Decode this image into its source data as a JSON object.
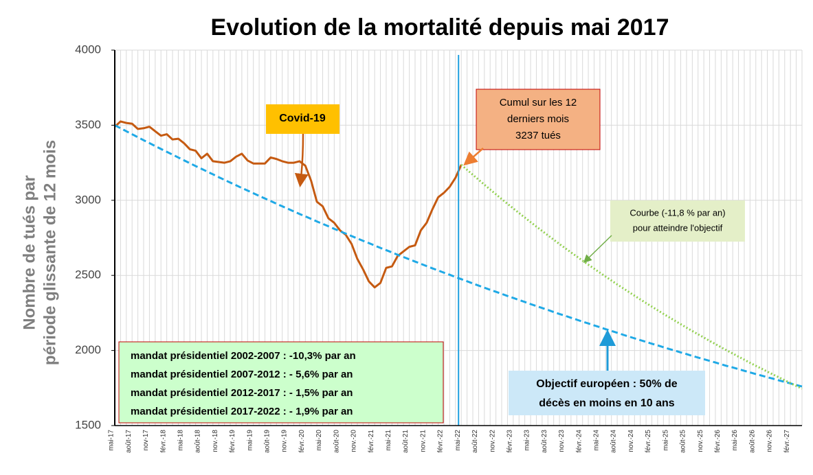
{
  "chart_data": {
    "type": "line",
    "title": "Evolution de la mortalité depuis mai 2017",
    "y_label": [
      "Nombre de tués par",
      "période  glissante de 12 mois"
    ],
    "categories": [
      "mai-17",
      null,
      null,
      "août-17",
      null,
      null,
      "nov-17",
      null,
      null,
      "févr.-18",
      null,
      null,
      "mai-18",
      null,
      null,
      "août-18",
      null,
      null,
      "nov.-18",
      null,
      null,
      "févr.-19",
      null,
      null,
      "mai-19",
      null,
      null,
      "août-19",
      null,
      null,
      "nov.-19",
      null,
      null,
      "févr.-20",
      null,
      null,
      "mai-20",
      null,
      null,
      "août-20",
      null,
      null,
      "nov.-20",
      null,
      null,
      "févr.-21",
      null,
      null,
      "mai-21",
      null,
      null,
      "août-21",
      null,
      null,
      "nov.-21",
      null,
      null,
      "févr.-22",
      null,
      null,
      "mai-22",
      null,
      null,
      "août-22",
      null,
      null,
      "nov.-22",
      null,
      null,
      "févr.-23",
      null,
      null,
      "mai-23",
      null,
      null,
      "août-23",
      null,
      null,
      "nov.-23",
      null,
      null,
      "févr.-24",
      null,
      null,
      "mai-24",
      null,
      null,
      "août-24",
      null,
      null,
      "nov.-24",
      null,
      null,
      "févr.-25",
      null,
      null,
      "mai-25",
      null,
      null,
      "août-25",
      null,
      null,
      "nov.-25",
      null,
      null,
      "févr.-26",
      null,
      null,
      "mai-26",
      null,
      null,
      "août-26",
      null,
      null,
      "nov.-26",
      null,
      null,
      "févr.-27",
      null,
      null
    ],
    "series": [
      {
        "name": "Mortalité",
        "color": "#c55a11",
        "style": "solid",
        "values": [
          3490,
          3525,
          3515,
          3510,
          3475,
          3480,
          3490,
          3460,
          3430,
          3440,
          3405,
          3410,
          3380,
          3340,
          3330,
          3280,
          3310,
          3260,
          3255,
          3250,
          3260,
          3290,
          3310,
          3265,
          3245,
          3245,
          3245,
          3285,
          3275,
          3260,
          3250,
          3250,
          3260,
          3230,
          3130,
          2990,
          2960,
          2880,
          2850,
          2800,
          2770,
          2710,
          2610,
          2540,
          2460,
          2420,
          2450,
          2550,
          2560,
          2630,
          2660,
          2690,
          2700,
          2800,
          2850,
          2940,
          3020,
          3050,
          3090,
          3150,
          3237,
          null,
          null,
          null,
          null,
          null,
          null,
          null,
          null,
          null,
          null,
          null,
          null,
          null,
          null,
          null,
          null,
          null,
          null,
          null,
          null,
          null,
          null,
          null,
          null,
          null,
          null,
          null,
          null,
          null,
          null,
          null,
          null,
          null,
          null,
          null,
          null,
          null,
          null,
          null,
          null,
          null,
          null,
          null,
          null,
          null,
          null,
          null,
          null,
          null,
          null,
          null,
          null,
          null,
          null,
          null,
          null,
          null,
          null,
          null
        ]
      },
      {
        "name": "Objectif européen",
        "color": "#1fa9e6",
        "style": "dashed",
        "values": [
          3500,
          3480,
          3460,
          3440,
          3420,
          3400,
          3381,
          3361,
          3342,
          3323,
          3304,
          3285,
          3266,
          3247,
          3228,
          3210,
          3191,
          3173,
          3154,
          3136,
          3118,
          3100,
          3082,
          3065,
          3047,
          3029,
          3012,
          2995,
          2977,
          2960,
          2943,
          2926,
          2909,
          2893,
          2876,
          2859,
          2843,
          2827,
          2810,
          2794,
          2778,
          2762,
          2746,
          2730,
          2715,
          2699,
          2683,
          2668,
          2653,
          2637,
          2622,
          2607,
          2592,
          2577,
          2562,
          2547,
          2533,
          2518,
          2504,
          2489,
          2475,
          2461,
          2446,
          2432,
          2418,
          2404,
          2391,
          2377,
          2363,
          2350,
          2336,
          2323,
          2309,
          2296,
          2283,
          2270,
          2256,
          2243,
          2231,
          2218,
          2205,
          2192,
          2180,
          2167,
          2155,
          2142,
          2130,
          2118,
          2105,
          2093,
          2081,
          2069,
          2057,
          2045,
          2034,
          2022,
          2010,
          1999,
          1987,
          1976,
          1964,
          1953,
          1942,
          1931,
          1920,
          1908,
          1897,
          1887,
          1876,
          1865,
          1854,
          1843,
          1833,
          1822,
          1812,
          1801,
          1791,
          1781,
          1770,
          1760
        ]
      },
      {
        "name": "Courbe",
        "color": "#92d050",
        "style": "dotted",
        "values": [
          null,
          null,
          null,
          null,
          null,
          null,
          null,
          null,
          null,
          null,
          null,
          null,
          null,
          null,
          null,
          null,
          null,
          null,
          null,
          null,
          null,
          null,
          null,
          null,
          null,
          null,
          null,
          null,
          null,
          null,
          null,
          null,
          null,
          null,
          null,
          null,
          null,
          null,
          null,
          null,
          null,
          null,
          null,
          null,
          null,
          null,
          null,
          null,
          null,
          null,
          null,
          null,
          null,
          null,
          null,
          null,
          null,
          null,
          null,
          null,
          3237,
          3203,
          3170,
          3137,
          3104,
          3072,
          3040,
          3008,
          2977,
          2946,
          2915,
          2885,
          2855,
          2825,
          2796,
          2767,
          2738,
          2709,
          2681,
          2653,
          2626,
          2598,
          2571,
          2545,
          2518,
          2492,
          2466,
          2440,
          2415,
          2390,
          2365,
          2340,
          2316,
          2292,
          2268,
          2244,
          2221,
          2198,
          2175,
          2152,
          2130,
          2108,
          2086,
          2064,
          2043,
          2021,
          2000,
          1980,
          1959,
          1939,
          1918,
          1898,
          1879,
          1859,
          1840,
          1821,
          1802,
          1783,
          1764,
          1746
        ]
      }
    ],
    "ylim": [
      1500,
      4000
    ],
    "yticks": [
      1500,
      2000,
      2500,
      3000,
      3500,
      4000
    ],
    "grid": true,
    "annotations": {
      "covid": "Covid-19",
      "cumul": [
        "Cumul sur les 12",
        "derniers mois",
        "3237 tués"
      ],
      "courbe": [
        "Courbe (-11,8 % par an)",
        "pour atteindre l'objectif"
      ],
      "objectif": [
        "Objectif européen  : 50% de",
        "décès en moins en 10 ans"
      ],
      "mandats": [
        "mandat présidentiel 2002-2007 : -10,3% par an",
        "mandat présidentiel 2007-2012 : - 5,6% par an",
        "mandat présidentiel 2012-2017 : - 1,5% par an",
        "mandat présidentiel 2017-2022 : - 1,9% par an"
      ]
    }
  }
}
